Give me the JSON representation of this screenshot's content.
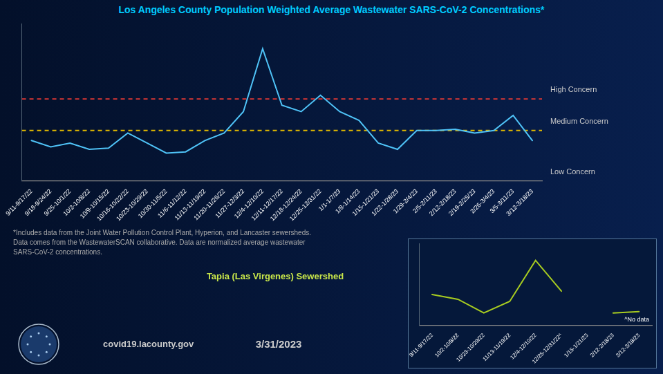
{
  "chart_data": [
    {
      "type": "line",
      "title": "Los Angeles County Population Weighted Average Wastewater SARS-CoV-2 Concentrations*",
      "categories": [
        "9/11-9/17/22",
        "9/18-9/24/22",
        "9/25-10/1/22",
        "10/2-10/8/22",
        "10/9-10/15/22",
        "10/16-10/22/22",
        "10/23-10/29/22",
        "10/30-11/5/22",
        "11/6-11/12/22",
        "11/13-11/19/22",
        "11/20-11/26/22",
        "11/27-12/3/22",
        "12/4-12/10/22",
        "12/11-12/17/22",
        "12/18-12/24/22",
        "12/25-12/31/22",
        "1/1-1/7/23",
        "1/8-1/14/23",
        "1/15-1/21/23",
        "1/22-1/28/23",
        "1/29-2/4/23",
        "2/5-2/11/23",
        "2/12-2/18/23",
        "2/19-2/25/23",
        "2/26-3/4/23",
        "3/5-3/11/23",
        "3/12-3/18/23"
      ],
      "values": [
        3.2,
        2.7,
        3.0,
        2.5,
        2.6,
        3.8,
        3.0,
        2.2,
        2.3,
        3.2,
        3.8,
        5.5,
        10.5,
        6.0,
        5.5,
        6.8,
        5.5,
        4.8,
        3.0,
        2.5,
        4.0,
        4.0,
        4.1,
        3.8,
        4.0,
        5.2,
        3.2
      ],
      "color": "#4fc3f7",
      "ylim": [
        0,
        12.5
      ],
      "tick_labels": "x",
      "grid": false,
      "reference_lines": [
        {
          "y": 6.5,
          "color": "#e53935",
          "line_style": "dashed"
        },
        {
          "y": 4.0,
          "color": "#e0b800",
          "line_style": "dashed"
        }
      ],
      "annotations": [
        {
          "text": "High Concern",
          "y": 6.5
        },
        {
          "text": "Medium Concern",
          "y": 4.0
        },
        {
          "text": "Low Concern",
          "y": 0
        }
      ],
      "footnotes": [
        "*Includes data from the Joint Water Pollution Control Plant, Hyperion, and Lancaster sewersheds.",
        "Data comes from the WastewaterSCAN collaborative. Data are normalized average wastewater",
        "SARS-CoV-2 concentrations."
      ],
      "credits": [
        "covid19.lacounty.gov",
        "3/31/2023"
      ]
    },
    {
      "type": "line",
      "title": "Tapia (Las Virgenes) Sewershed",
      "categories": [
        "9/11-9/17/22",
        "10/2-10/8/22",
        "10/23-10/29/22",
        "11/13-11/19/22",
        "12/4-12/10/22",
        "12/25-12/31/22^",
        "1/15-1/21/23",
        "2/12-2/18/23",
        "3/12-3/18/23"
      ],
      "values": [
        4.5,
        3.8,
        1.8,
        3.5,
        9.5,
        5.0,
        null,
        1.8,
        2.0
      ],
      "color": "#a8cc20",
      "ylim": [
        0,
        12
      ],
      "tick_labels": "x",
      "grid": false,
      "annotations": [
        {
          "text": "^No data"
        }
      ]
    }
  ]
}
